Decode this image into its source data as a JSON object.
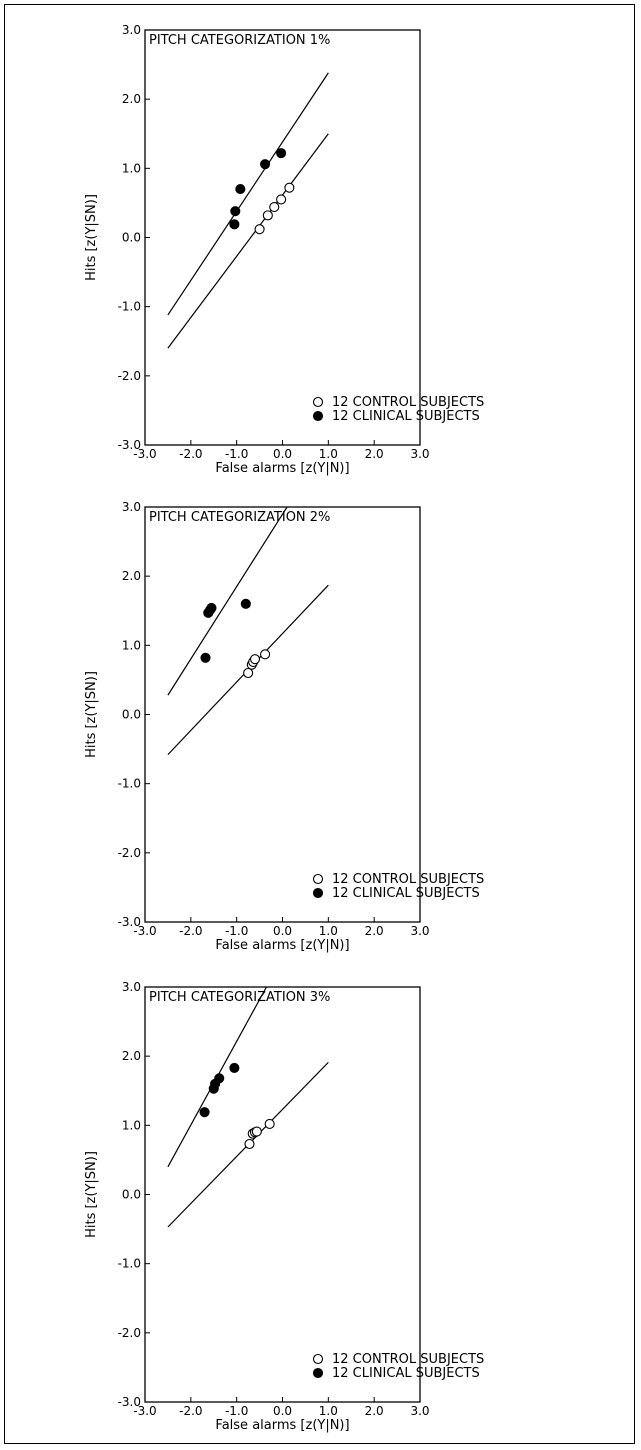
{
  "chart_data": [
    {
      "type": "scatter",
      "title": "PITCH CATEGORIZATION 1%",
      "xlabel": "False alarms [z(Y|N)]",
      "ylabel": "Hits [z(Y|SN)]",
      "xlim": [
        -3,
        3
      ],
      "ylim": [
        -3,
        3
      ],
      "xticks": [
        "-3.0",
        "-2.0",
        "-1.0",
        "0.0",
        "1.0",
        "2.0",
        "3.0"
      ],
      "yticks": [
        "-3.0",
        "-2.0",
        "-1.0",
        "0.0",
        "1.0",
        "2.0",
        "3.0"
      ],
      "legend_position": "bottom-right",
      "series": [
        {
          "name": "12 CONTROL SUBJECTS",
          "marker": "open-circle",
          "points": [
            [
              -0.5,
              0.12
            ],
            [
              -0.32,
              0.32
            ],
            [
              -0.18,
              0.44
            ],
            [
              -0.03,
              0.55
            ],
            [
              0.15,
              0.72
            ]
          ],
          "fit_line": [
            [
              -2.5,
              -1.6
            ],
            [
              1.0,
              1.5
            ]
          ]
        },
        {
          "name": "12 CLINICAL SUBJECTS",
          "marker": "filled-circle",
          "points": [
            [
              -1.05,
              0.19
            ],
            [
              -1.03,
              0.38
            ],
            [
              -0.92,
              0.7
            ],
            [
              -0.38,
              1.06
            ],
            [
              -0.03,
              1.22
            ]
          ],
          "fit_line": [
            [
              -2.5,
              -1.12
            ],
            [
              1.0,
              2.38
            ]
          ]
        }
      ]
    },
    {
      "type": "scatter",
      "title": "PITCH CATEGORIZATION 2%",
      "xlabel": "False alarms [z(Y|N)]",
      "ylabel": "Hits [z(Y|SN)]",
      "xlim": [
        -3,
        3
      ],
      "ylim": [
        -3,
        3
      ],
      "xticks": [
        "-3.0",
        "-2.0",
        "-1.0",
        "0.0",
        "1.0",
        "2.0",
        "3.0"
      ],
      "yticks": [
        "-3.0",
        "-2.0",
        "-1.0",
        "0.0",
        "1.0",
        "2.0",
        "3.0"
      ],
      "legend_position": "bottom-right",
      "series": [
        {
          "name": "12 CONTROL SUBJECTS",
          "marker": "open-circle",
          "points": [
            [
              -0.75,
              0.6
            ],
            [
              -0.67,
              0.72
            ],
            [
              -0.64,
              0.76
            ],
            [
              -0.6,
              0.8
            ],
            [
              -0.38,
              0.87
            ]
          ],
          "fit_line": [
            [
              -2.5,
              -0.58
            ],
            [
              1.0,
              1.87
            ]
          ]
        },
        {
          "name": "12 CLINICAL SUBJECTS",
          "marker": "filled-circle",
          "points": [
            [
              -1.68,
              0.82
            ],
            [
              -1.62,
              1.47
            ],
            [
              -1.58,
              1.51
            ],
            [
              -1.55,
              1.54
            ],
            [
              -0.8,
              1.6
            ]
          ],
          "fit_line": [
            [
              -2.5,
              0.28
            ],
            [
              0.1,
              3.0
            ]
          ]
        }
      ]
    },
    {
      "type": "scatter",
      "title": "PITCH CATEGORIZATION 3%",
      "xlabel": "False alarms [z(Y|N)]",
      "ylabel": "Hits [z(Y|SN)]",
      "xlim": [
        -3,
        3
      ],
      "ylim": [
        -3,
        3
      ],
      "xticks": [
        "-3.0",
        "-2.0",
        "-1.0",
        "0.0",
        "1.0",
        "2.0",
        "3.0"
      ],
      "yticks": [
        "-3.0",
        "-2.0",
        "-1.0",
        "0.0",
        "1.0",
        "2.0",
        "3.0"
      ],
      "legend_position": "bottom-right",
      "series": [
        {
          "name": "12 CONTROL SUBJECTS",
          "marker": "open-circle",
          "points": [
            [
              -0.72,
              0.73
            ],
            [
              -0.65,
              0.88
            ],
            [
              -0.6,
              0.9
            ],
            [
              -0.56,
              0.91
            ],
            [
              -0.28,
              1.02
            ]
          ],
          "fit_line": [
            [
              -2.5,
              -0.47
            ],
            [
              1.0,
              1.91
            ]
          ]
        },
        {
          "name": "12 CLINICAL SUBJECTS",
          "marker": "filled-circle",
          "points": [
            [
              -1.7,
              1.19
            ],
            [
              -1.5,
              1.53
            ],
            [
              -1.47,
              1.6
            ],
            [
              -1.38,
              1.68
            ],
            [
              -1.05,
              1.83
            ]
          ],
          "fit_line": [
            [
              -2.5,
              0.4
            ],
            [
              -0.35,
              3.0
            ]
          ]
        }
      ]
    }
  ]
}
